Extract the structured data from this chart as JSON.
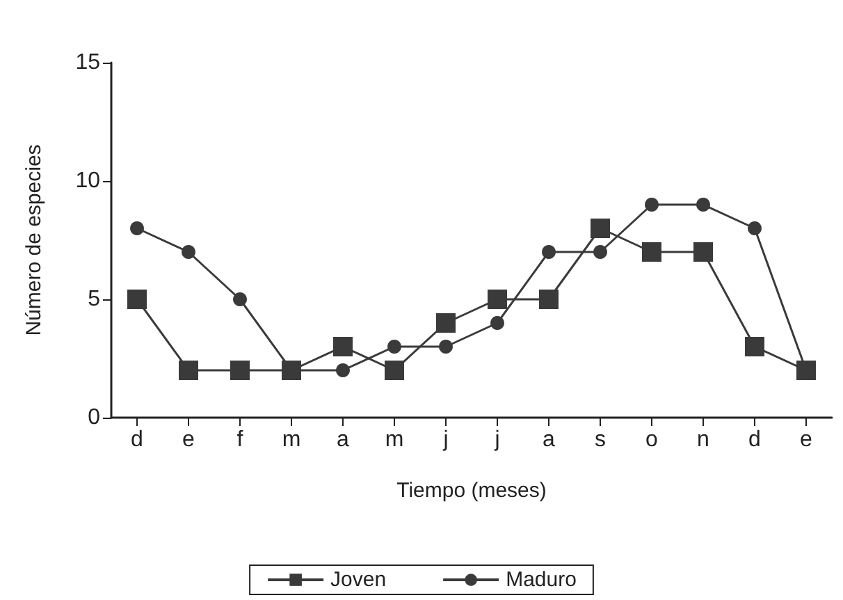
{
  "chart_data": {
    "type": "line",
    "xlabel": "Tiempo (meses)",
    "ylabel": "Número de especies",
    "categories": [
      "d",
      "e",
      "f",
      "m",
      "a",
      "m",
      "j",
      "j",
      "a",
      "s",
      "o",
      "n",
      "d",
      "e"
    ],
    "series": [
      {
        "name": "Joven",
        "color": "#3a3a3a",
        "marker": "square",
        "values": [
          5,
          2,
          2,
          2,
          3,
          2,
          4,
          5,
          5,
          8,
          7,
          7,
          3,
          2
        ]
      },
      {
        "name": "Maduro",
        "color": "#3a3a3a",
        "marker": "circle",
        "values": [
          8,
          7,
          5,
          2,
          2,
          3,
          3,
          4,
          7,
          7,
          9,
          9,
          8,
          2
        ]
      }
    ],
    "ylim": [
      0,
      15
    ],
    "yticks": [
      0,
      5,
      10,
      15
    ],
    "grid": false,
    "legend": "bottom",
    "line_style": "solid"
  }
}
